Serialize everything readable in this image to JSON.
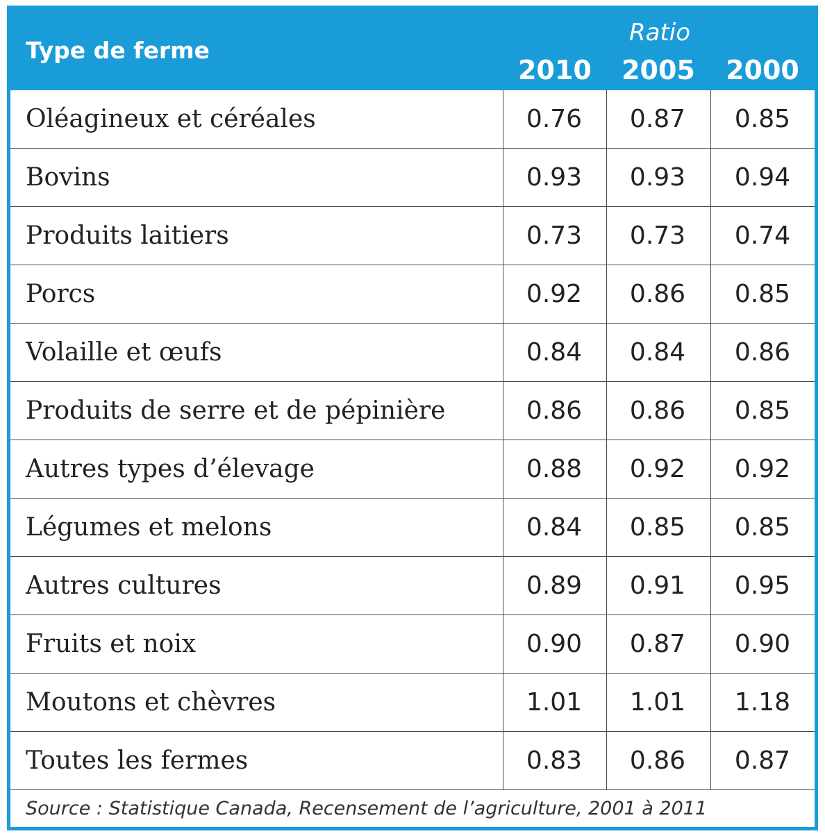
{
  "header": {
    "type_label": "Type de ferme",
    "ratio_label": "Ratio",
    "years": [
      "2010",
      "2005",
      "2000"
    ]
  },
  "rows": [
    {
      "name": "Oléagineux et céréales",
      "values": [
        "0.76",
        "0.87",
        "0.85"
      ]
    },
    {
      "name": "Bovins",
      "values": [
        "0.93",
        "0.93",
        "0.94"
      ]
    },
    {
      "name": "Produits laitiers",
      "values": [
        "0.73",
        "0.73",
        "0.74"
      ]
    },
    {
      "name": "Porcs",
      "values": [
        "0.92",
        "0.86",
        "0.85"
      ]
    },
    {
      "name": "Volaille et œufs",
      "values": [
        "0.84",
        "0.84",
        "0.86"
      ]
    },
    {
      "name": "Produits de serre et de pépinière",
      "values": [
        "0.86",
        "0.86",
        "0.85"
      ]
    },
    {
      "name": "Autres types d’élevage",
      "values": [
        "0.88",
        "0.92",
        "0.92"
      ]
    },
    {
      "name": "Légumes et melons",
      "values": [
        "0.84",
        "0.85",
        "0.85"
      ]
    },
    {
      "name": "Autres cultures",
      "values": [
        "0.89",
        "0.91",
        "0.95"
      ]
    },
    {
      "name": "Fruits et noix",
      "values": [
        "0.90",
        "0.87",
        "0.90"
      ]
    },
    {
      "name": "Moutons et chèvres",
      "values": [
        "1.01",
        "1.01",
        "1.18"
      ]
    },
    {
      "name": "Toutes les fermes",
      "values": [
        "0.83",
        "0.86",
        "0.87"
      ]
    }
  ],
  "source": "Source : Statistique Canada, Recensement de l’agriculture, 2001 à 2011",
  "colors": {
    "accent": "#1a9cd8",
    "text": "#222222",
    "rule": "#4a4a4a"
  }
}
